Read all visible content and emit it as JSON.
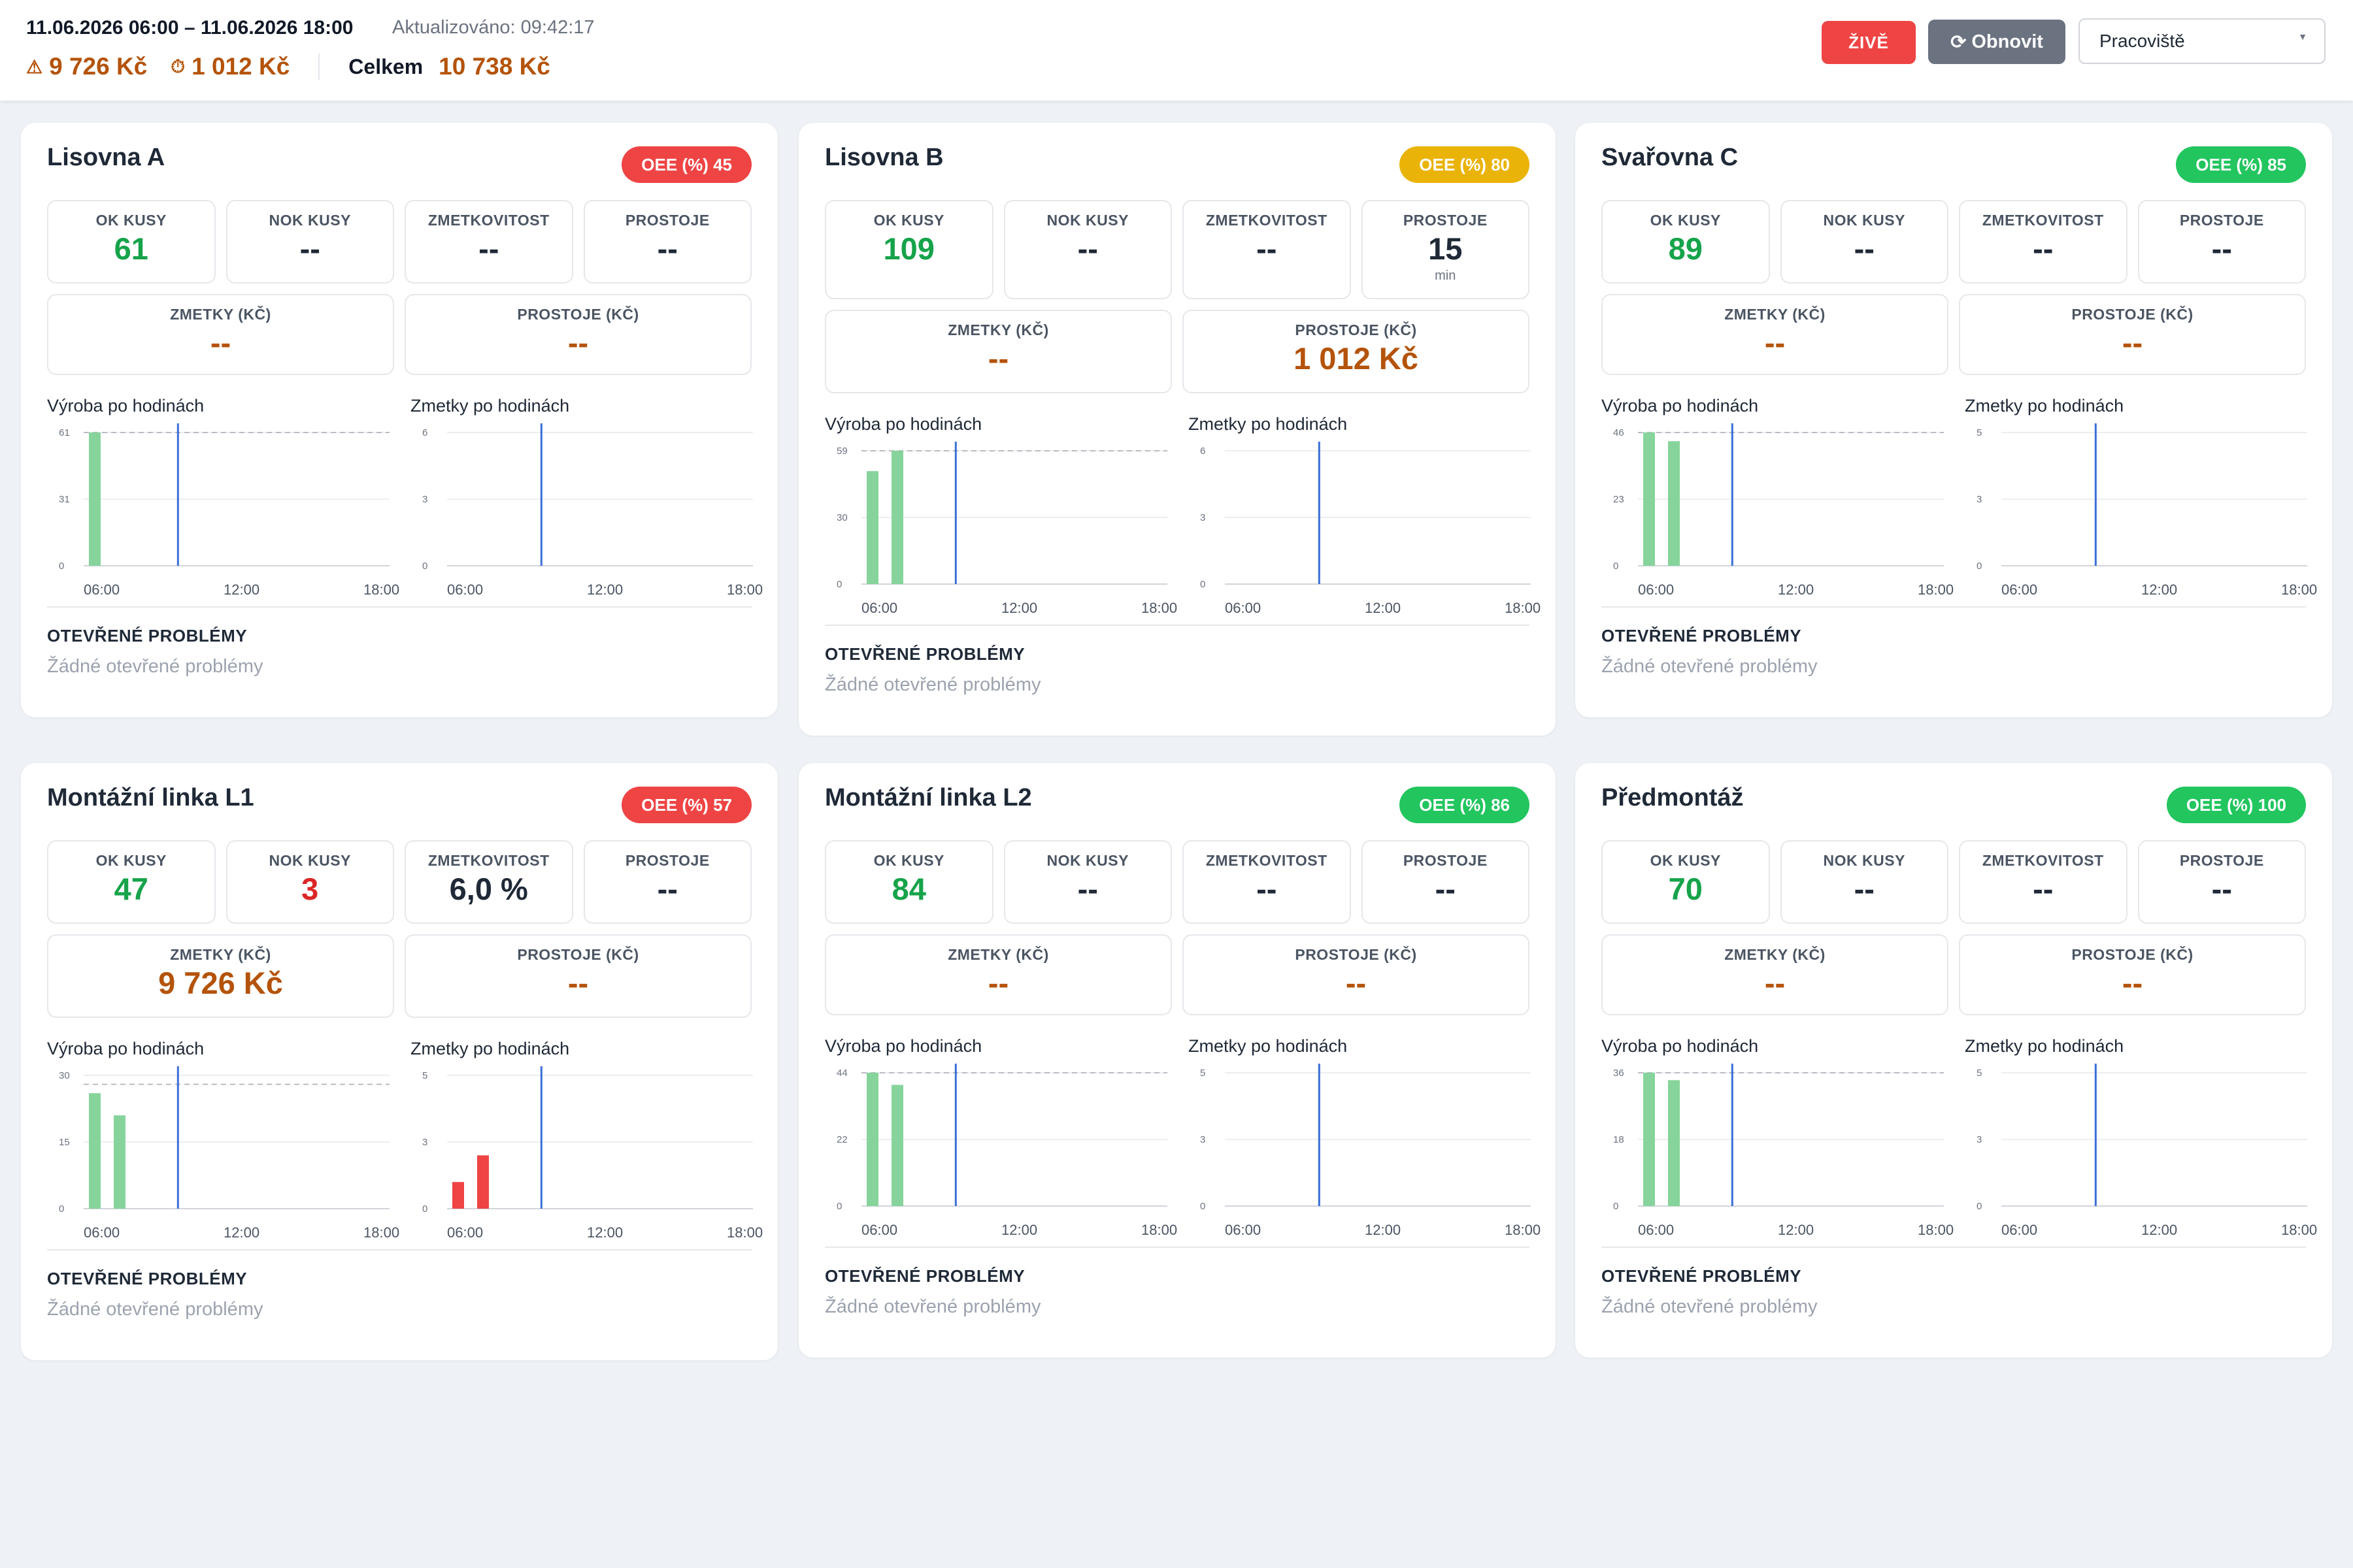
{
  "header": {
    "range": "11.06.2026 06:00 – 11.06.2026 18:00",
    "updated_label": "Aktualizováno:",
    "updated_time": "09:42:17",
    "scrap_total": "9 726 Kč",
    "downtime_total": "1 012 Kč",
    "total_label": "Celkem",
    "total_value": "10 738 Kč",
    "scrap_icon": "warning-icon",
    "downtime_icon": "stopwatch-icon",
    "live_label": "ŽIVĚ",
    "refresh_label": "Obnovit",
    "refresh_icon": "refresh-icon",
    "workplace_select": "Pracoviště"
  },
  "colors": {
    "accent_green": "#22c55e",
    "accent_red": "#ef4444",
    "accent_yellow": "#eab308",
    "amber_text": "#b45309",
    "bar_production": "#86d49b",
    "bar_scrap": "#ef4444",
    "now_line": "#3b6fd8"
  },
  "labels": {
    "ok": "OK KUSY",
    "nok": "NOK KUSY",
    "scrap_rate": "ZMETKOVITOST",
    "downtime": "PROSTOJE",
    "scrap_cost": "ZMETKY (KČ)",
    "downtime_cost": "PROSTOJE (KČ)",
    "production_chart": "Výroba po hodinách",
    "scrap_chart": "Zmetky po hodinách",
    "problems": "OTEVŘENÉ PROBLÉMY",
    "no_problems": "Žádné otevřené problémy",
    "x_ticks": [
      "06:00",
      "12:00",
      "18:00"
    ]
  },
  "workplaces": [
    {
      "name": "Lisovna A",
      "oee": "OEE (%) 45",
      "oee_level": "red",
      "ok": "61",
      "nok": "--",
      "scrap_rate": "--",
      "downtime": "--",
      "downtime_unit": "",
      "scrap_cost": "--",
      "downtime_cost": "--",
      "prod": {
        "yticks": [
          "0",
          "31",
          "61"
        ],
        "ymax": 61,
        "target": 61,
        "values": [
          61,
          null,
          null,
          null,
          null,
          null,
          null,
          null,
          null,
          null,
          null,
          null
        ]
      },
      "scrap": {
        "yticks": [
          "0",
          "3",
          "6"
        ],
        "ymax": 6,
        "values": []
      },
      "now_hour": 9.7
    },
    {
      "name": "Lisovna B",
      "oee": "OEE (%) 80",
      "oee_level": "yellow",
      "ok": "109",
      "nok": "--",
      "scrap_rate": "--",
      "downtime": "15",
      "downtime_unit": "min",
      "scrap_cost": "--",
      "downtime_cost": "1 012 Kč",
      "prod": {
        "yticks": [
          "0",
          "30",
          "59"
        ],
        "ymax": 59,
        "target": 59,
        "values": [
          50,
          59
        ]
      },
      "scrap": {
        "yticks": [
          "0",
          "3",
          "6"
        ],
        "ymax": 6,
        "values": []
      },
      "now_hour": 9.7
    },
    {
      "name": "Svařovna C",
      "oee": "OEE (%) 85",
      "oee_level": "green",
      "ok": "89",
      "nok": "--",
      "scrap_rate": "--",
      "downtime": "--",
      "downtime_unit": "",
      "scrap_cost": "--",
      "downtime_cost": "--",
      "prod": {
        "yticks": [
          "0",
          "23",
          "46"
        ],
        "ymax": 46,
        "target": 46,
        "values": [
          46,
          43
        ]
      },
      "scrap": {
        "yticks": [
          "0",
          "3",
          "5"
        ],
        "ymax": 5,
        "values": []
      },
      "now_hour": 9.7
    },
    {
      "name": "Montážní linka L1",
      "oee": "OEE (%) 57",
      "oee_level": "red",
      "ok": "47",
      "nok": "3",
      "scrap_rate": "6,0 %",
      "downtime": "--",
      "downtime_unit": "",
      "scrap_cost": "9 726 Kč",
      "downtime_cost": "--",
      "prod": {
        "yticks": [
          "0",
          "15",
          "30"
        ],
        "ymax": 30,
        "target": 28,
        "values": [
          26,
          21
        ]
      },
      "scrap": {
        "yticks": [
          "0",
          "3",
          "5"
        ],
        "ymax": 5,
        "values": [
          1,
          2
        ]
      },
      "now_hour": 9.7
    },
    {
      "name": "Montážní linka L2",
      "oee": "OEE (%) 86",
      "oee_level": "green",
      "ok": "84",
      "nok": "--",
      "scrap_rate": "--",
      "downtime": "--",
      "downtime_unit": "",
      "scrap_cost": "--",
      "downtime_cost": "--",
      "prod": {
        "yticks": [
          "0",
          "22",
          "44"
        ],
        "ymax": 44,
        "target": 44,
        "values": [
          44,
          40
        ]
      },
      "scrap": {
        "yticks": [
          "0",
          "3",
          "5"
        ],
        "ymax": 5,
        "values": []
      },
      "now_hour": 9.7
    },
    {
      "name": "Předmontáž",
      "oee": "OEE (%) 100",
      "oee_level": "green",
      "ok": "70",
      "nok": "--",
      "scrap_rate": "--",
      "downtime": "--",
      "downtime_unit": "",
      "scrap_cost": "--",
      "downtime_cost": "--",
      "prod": {
        "yticks": [
          "0",
          "18",
          "36"
        ],
        "ymax": 36,
        "target": 36,
        "values": [
          36,
          34
        ]
      },
      "scrap": {
        "yticks": [
          "0",
          "3",
          "5"
        ],
        "ymax": 5,
        "values": []
      },
      "now_hour": 9.7
    }
  ]
}
